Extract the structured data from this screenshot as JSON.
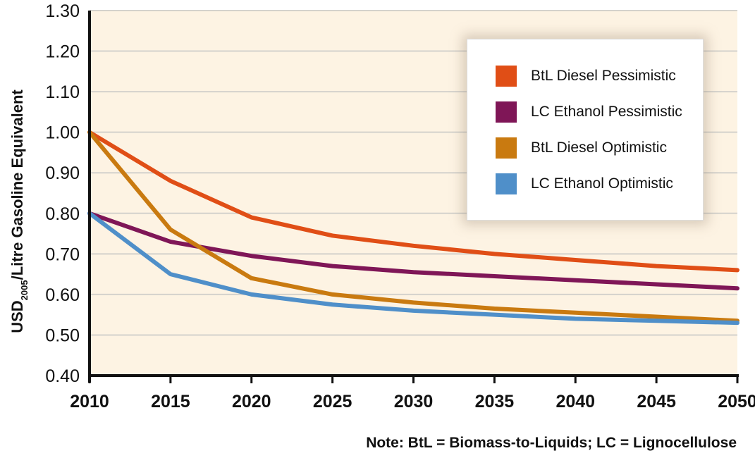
{
  "chart_data": {
    "type": "line",
    "title": "",
    "xlabel": "",
    "ylabel": "USD2005/Litre Gasoline Equivalent",
    "ylabel_main": "USD",
    "ylabel_sub": "2005",
    "ylabel_rest": "/Litre Gasoline Equivalent",
    "x": [
      2010,
      2015,
      2020,
      2025,
      2030,
      2035,
      2040,
      2045,
      2050
    ],
    "xlim": [
      2010,
      2050
    ],
    "ylim": [
      0.4,
      1.3
    ],
    "x_ticks": [
      "2010",
      "2015",
      "2020",
      "2025",
      "2030",
      "2035",
      "2040",
      "2045",
      "2050"
    ],
    "y_ticks": [
      "0.40",
      "0.50",
      "0.60",
      "0.70",
      "0.80",
      "0.90",
      "1.00",
      "1.10",
      "1.20",
      "1.30"
    ],
    "y_tick_values": [
      0.4,
      0.5,
      0.6,
      0.7,
      0.8,
      0.9,
      1.0,
      1.1,
      1.2,
      1.3
    ],
    "grid": "horizontal",
    "legend_position": "top-right",
    "background_color": "#fdf3e3",
    "series": [
      {
        "name": "BtL Diesel Pessimistic",
        "color": "#e04e16",
        "values": [
          1.0,
          0.88,
          0.79,
          0.745,
          0.72,
          0.7,
          0.685,
          0.67,
          0.66
        ]
      },
      {
        "name": "LC Ethanol Pessimistic",
        "color": "#7f1657",
        "values": [
          0.8,
          0.73,
          0.695,
          0.67,
          0.655,
          0.645,
          0.635,
          0.625,
          0.615
        ]
      },
      {
        "name": "BtL Diesel Optimistic",
        "color": "#c97a10",
        "values": [
          1.0,
          0.76,
          0.64,
          0.6,
          0.58,
          0.565,
          0.555,
          0.545,
          0.535
        ]
      },
      {
        "name": "LC Ethanol Optimistic",
        "color": "#4f8fc9",
        "values": [
          0.8,
          0.65,
          0.6,
          0.575,
          0.56,
          0.55,
          0.54,
          0.535,
          0.53
        ]
      }
    ],
    "annotations": [
      "Note: BtL = Biomass-to-Liquids; LC = Lignocellulose"
    ]
  },
  "legend": {
    "items": [
      {
        "label": "BtL Diesel Pessimistic",
        "color": "#e04e16"
      },
      {
        "label": "LC Ethanol Pessimistic",
        "color": "#7f1657"
      },
      {
        "label": "BtL Diesel Optimistic",
        "color": "#c97a10"
      },
      {
        "label": "LC Ethanol Optimistic",
        "color": "#4f8fc9"
      }
    ]
  },
  "note": "Note: BtL = Biomass-to-Liquids; LC = Lignocellulose"
}
